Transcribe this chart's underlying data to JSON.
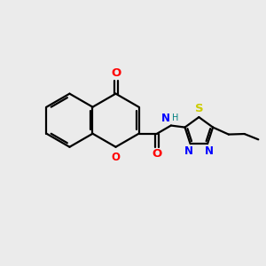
{
  "bg_color": "#ebebeb",
  "bond_color": "#000000",
  "O_color": "#ff0000",
  "N_color": "#0000ff",
  "S_color": "#cccc00",
  "H_color": "#008080",
  "font_size": 8.5,
  "lw": 1.6,
  "fig_size": [
    3.0,
    3.0
  ],
  "dpi": 100,
  "xlim": [
    0,
    10
  ],
  "ylim": [
    0,
    10
  ]
}
